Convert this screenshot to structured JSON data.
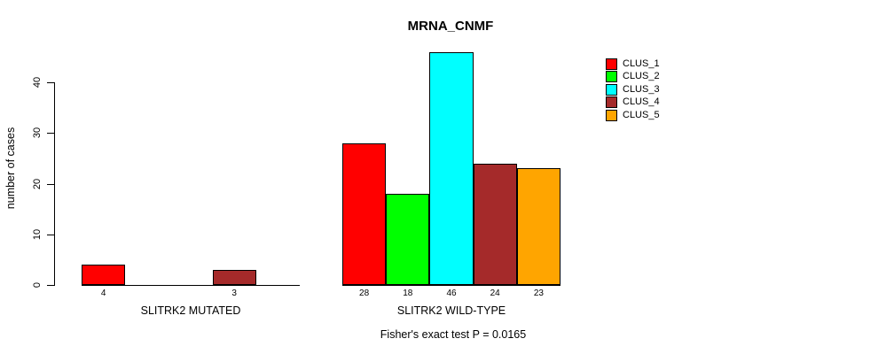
{
  "chart_data": {
    "type": "bar",
    "title": "MRNA_CNMF",
    "ylabel": "number of cases",
    "xlabel": "",
    "yticks": [
      0,
      10,
      20,
      30,
      40
    ],
    "ylim": [
      0,
      46
    ],
    "grid": false,
    "legend_position": "top-right",
    "series_names": [
      "CLUS_1",
      "CLUS_2",
      "CLUS_3",
      "CLUS_4",
      "CLUS_5"
    ],
    "series_colors": [
      "#FF0000",
      "#00FF00",
      "#00FFFF",
      "#A52A2A",
      "#FFA500"
    ],
    "groups": [
      {
        "label": "SLITRK2 MUTATED",
        "values": [
          4,
          0,
          0,
          3,
          0
        ]
      },
      {
        "label": "SLITRK2 WILD-TYPE",
        "values": [
          28,
          18,
          46,
          24,
          23
        ]
      }
    ],
    "bar_value_labels_shown": true,
    "annotation": "Fisher's exact test P = 0.0165"
  }
}
